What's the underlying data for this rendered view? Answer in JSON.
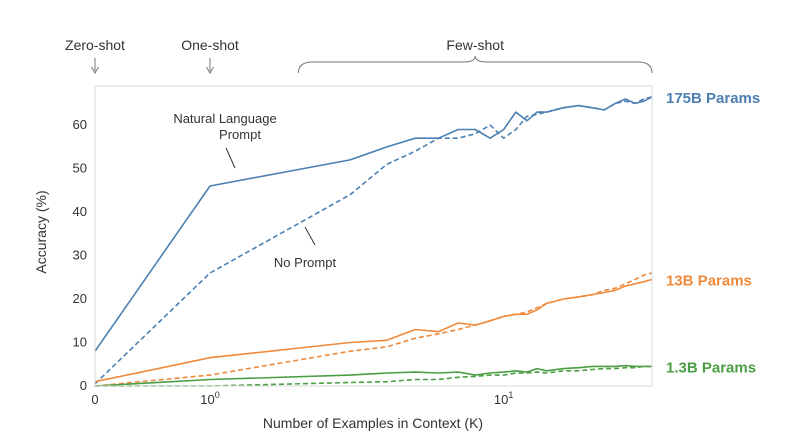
{
  "chart_data": {
    "type": "line",
    "xlabel": "Number of Examples in Context  (K)",
    "ylabel": "Accuracy (%)",
    "xscale": "symlog",
    "xlim": [
      0,
      32
    ],
    "ylim": [
      0,
      69
    ],
    "x_ticks": [
      {
        "value": 0,
        "label": "0"
      },
      {
        "value": 1,
        "label": "10",
        "sup": "0"
      },
      {
        "value": 10,
        "label": "10",
        "sup": "1"
      }
    ],
    "y_ticks": [
      0,
      10,
      20,
      30,
      40,
      50,
      60
    ],
    "grid": false,
    "top_annotations": [
      {
        "label": "Zero-shot",
        "at": 0
      },
      {
        "label": "One-shot",
        "at": 1
      },
      {
        "label": "Few-shot",
        "from": 2,
        "to": 32
      }
    ],
    "annotations": [
      {
        "text": [
          "Natural Language",
          "Prompt"
        ],
        "points_to": "175B Params prompt line"
      },
      {
        "text": [
          "No Prompt"
        ],
        "points_to": "175B Params no-prompt line"
      }
    ],
    "series": [
      {
        "name": "175B Params",
        "color": "#4c80b2",
        "style": "solid",
        "x": [
          0,
          1,
          3,
          4,
          5,
          6,
          7,
          8,
          9,
          10,
          11,
          12,
          13,
          14,
          16,
          18,
          20,
          22,
          24,
          26,
          28,
          30,
          32
        ],
        "y": [
          8,
          46,
          52,
          55,
          57,
          57,
          59,
          59,
          57,
          59,
          63,
          61,
          63,
          63,
          64,
          64.5,
          64,
          63.5,
          65,
          66,
          65,
          65.5,
          66.5
        ]
      },
      {
        "name": "175B Params",
        "color": "#4c80b2",
        "style": "dashed",
        "x": [
          0,
          1,
          3,
          4,
          5,
          6,
          7,
          8,
          9,
          10,
          11,
          12,
          13,
          14,
          16,
          18,
          20,
          22,
          24,
          26,
          28,
          30,
          32
        ],
        "y": [
          0.5,
          26,
          44,
          51,
          54,
          57,
          57,
          58,
          60,
          57,
          59,
          62,
          62.5,
          63,
          64,
          64.5,
          64,
          63.5,
          65,
          65.5,
          65,
          66,
          66.5
        ]
      },
      {
        "name": "13B Params",
        "color": "#ef8a3c",
        "style": "solid",
        "x": [
          0,
          1,
          3,
          4,
          5,
          6,
          7,
          8,
          9,
          10,
          11,
          12,
          13,
          14,
          16,
          18,
          20,
          22,
          24,
          26,
          28,
          30,
          32
        ],
        "y": [
          1,
          6.5,
          10,
          10.5,
          13,
          12.5,
          14.5,
          14,
          15,
          16,
          16.5,
          16.5,
          17.5,
          19,
          20,
          20.5,
          21,
          21.5,
          22,
          23,
          23.5,
          24,
          24.5
        ]
      },
      {
        "name": "13B Params",
        "color": "#ef8a3c",
        "style": "dashed",
        "x": [
          0,
          1,
          3,
          4,
          5,
          6,
          7,
          8,
          9,
          10,
          11,
          12,
          13,
          14,
          16,
          18,
          20,
          22,
          24,
          26,
          28,
          30,
          32
        ],
        "y": [
          0,
          2.5,
          8,
          9,
          11,
          12,
          13,
          14,
          15,
          16,
          16.5,
          17,
          18,
          19,
          20,
          20.5,
          21,
          22,
          22.5,
          23.5,
          24.5,
          25.5,
          26
        ]
      },
      {
        "name": "1.3B Params",
        "color": "#4b9e44",
        "style": "solid",
        "x": [
          0,
          1,
          3,
          4,
          5,
          6,
          7,
          8,
          9,
          10,
          11,
          12,
          13,
          14,
          16,
          18,
          20,
          22,
          24,
          26,
          28,
          30,
          32
        ],
        "y": [
          0,
          1.5,
          2.5,
          3,
          3.2,
          3,
          3.2,
          2.5,
          3,
          3.2,
          3.5,
          3.2,
          4,
          3.5,
          4,
          4.2,
          4.5,
          4.5,
          4.5,
          4.7,
          4.5,
          4.5,
          4.5
        ]
      },
      {
        "name": "1.3B Params",
        "color": "#4b9e44",
        "style": "dashed",
        "x": [
          0,
          1,
          3,
          4,
          5,
          6,
          7,
          8,
          9,
          10,
          11,
          12,
          13,
          14,
          16,
          18,
          20,
          22,
          24,
          26,
          28,
          30,
          32
        ],
        "y": [
          0,
          0,
          0.8,
          1,
          1.5,
          1.5,
          2,
          2.2,
          2.5,
          2.5,
          3,
          3,
          3.2,
          3,
          3.5,
          3.5,
          3.8,
          4,
          4,
          4.2,
          4.2,
          4.5,
          4.5
        ]
      }
    ]
  }
}
